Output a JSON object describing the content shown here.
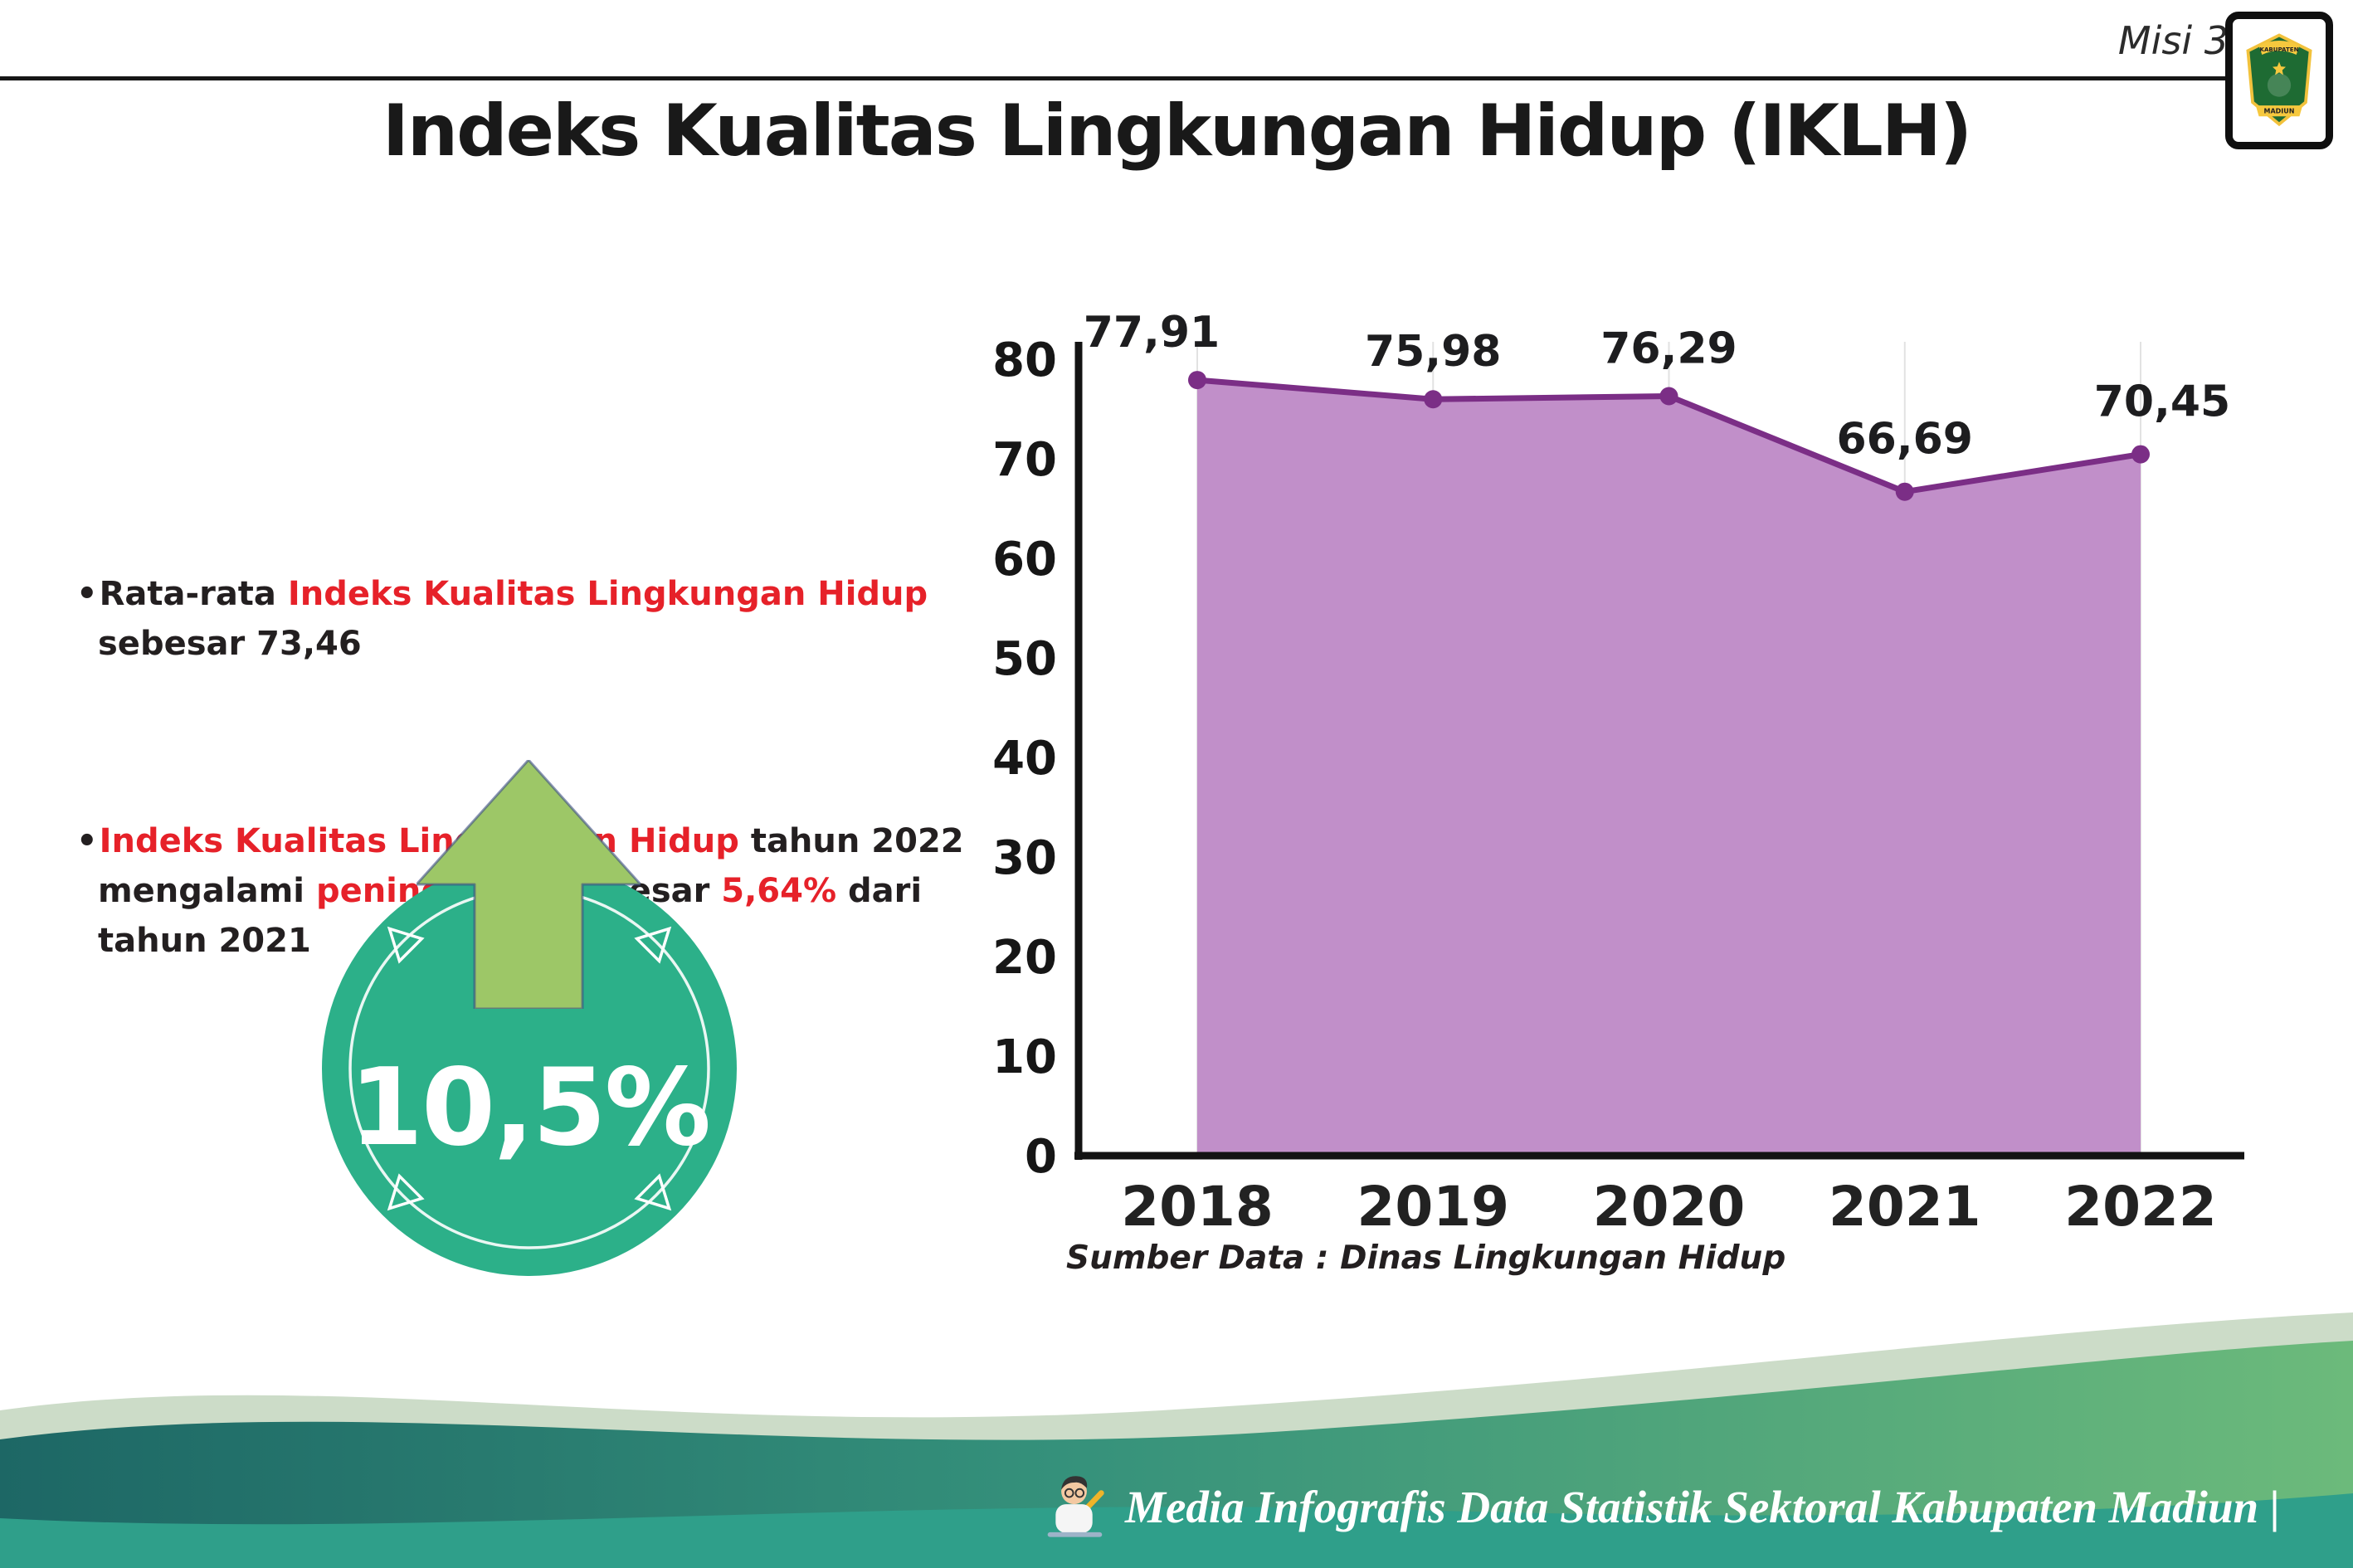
{
  "page": {
    "misi_label": "Misi 3",
    "title": "Indeks Kualitas Lingkungan Hidup (IKLH)"
  },
  "logo": {
    "line1": "KABUPATEN",
    "line2": "MADIUN"
  },
  "bullets": [
    {
      "segments": [
        {
          "t": "Rata-rata ",
          "c": "dark"
        },
        {
          "t": "Indeks Kualitas Lingkungan Hidup",
          "c": "red"
        },
        {
          "t": "\nsebesar 73,46",
          "c": "dark"
        }
      ]
    },
    {
      "segments": [
        {
          "t": "Indeks Kualitas Lingkungan Hidup",
          "c": "red"
        },
        {
          "t": " tahun 2022\nmengalami ",
          "c": "dark"
        },
        {
          "t": "peningkatan",
          "c": "red"
        },
        {
          "t": " sebesar ",
          "c": "dark"
        },
        {
          "t": "5,64%",
          "c": "red"
        },
        {
          "t": " dari\ntahun 2021",
          "c": "dark"
        }
      ]
    }
  ],
  "badge": {
    "value": "10,5%"
  },
  "chart_data": {
    "type": "area",
    "title": "Indeks Kualitas Lingkungan Hidup (IKLH)",
    "categories": [
      "2018",
      "2019",
      "2020",
      "2021",
      "2022"
    ],
    "values": [
      77.91,
      75.98,
      76.29,
      66.69,
      70.45
    ],
    "value_labels": [
      "77,91",
      "75,98",
      "76,29",
      "66,69",
      "70,45"
    ],
    "xlabel": "",
    "ylabel": "",
    "ylim": [
      0,
      80
    ],
    "yticks": [
      0,
      10,
      20,
      30,
      40,
      50,
      60,
      70,
      80
    ],
    "grid": "vertical-light",
    "legend": "none",
    "line_color": "#7b2e86",
    "fill_color": "#c18fc9",
    "marker_color": "#7b2e86",
    "source": "Sumber Data : Dinas Lingkungan Hidup"
  },
  "footer": {
    "credit": "Media Infografis Data Statistik Sektoral Kabupaten Madiun |"
  },
  "colors": {
    "accent_red": "#e62129",
    "text_dark": "#231f20",
    "badge_green": "#2cb089",
    "arrow_green": "#9dc767",
    "footer_teal": "#2f9f8a"
  }
}
